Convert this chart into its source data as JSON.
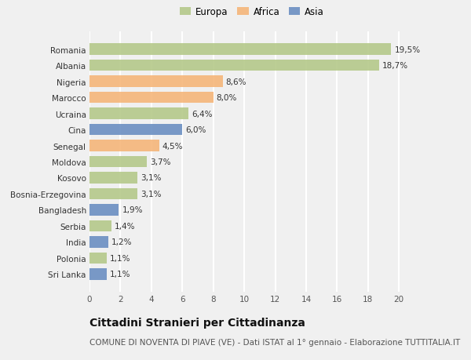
{
  "countries": [
    "Romania",
    "Albania",
    "Nigeria",
    "Marocco",
    "Ucraina",
    "Cina",
    "Senegal",
    "Moldova",
    "Kosovo",
    "Bosnia-Erzegovina",
    "Bangladesh",
    "Serbia",
    "India",
    "Polonia",
    "Sri Lanka"
  ],
  "values": [
    19.5,
    18.7,
    8.6,
    8.0,
    6.4,
    6.0,
    4.5,
    3.7,
    3.1,
    3.1,
    1.9,
    1.4,
    1.2,
    1.1,
    1.1
  ],
  "labels": [
    "19,5%",
    "18,7%",
    "8,6%",
    "8,0%",
    "6,4%",
    "6,0%",
    "4,5%",
    "3,7%",
    "3,1%",
    "3,1%",
    "1,9%",
    "1,4%",
    "1,2%",
    "1,1%",
    "1,1%"
  ],
  "continents": [
    "Europa",
    "Europa",
    "Africa",
    "Africa",
    "Europa",
    "Asia",
    "Africa",
    "Europa",
    "Europa",
    "Europa",
    "Asia",
    "Europa",
    "Asia",
    "Europa",
    "Asia"
  ],
  "colors": {
    "Europa": "#b5c98a",
    "Africa": "#f5b67a",
    "Asia": "#6b8fc2"
  },
  "xlim": [
    0,
    21
  ],
  "xticks": [
    0,
    2,
    4,
    6,
    8,
    10,
    12,
    14,
    16,
    18,
    20
  ],
  "title": "Cittadini Stranieri per Cittadinanza",
  "subtitle": "COMUNE DI NOVENTA DI PIAVE (VE) - Dati ISTAT al 1° gennaio - Elaborazione TUTTITALIA.IT",
  "bg_color": "#f0f0f0",
  "grid_color": "#ffffff",
  "bar_alpha": 0.9,
  "title_fontsize": 10,
  "subtitle_fontsize": 7.5,
  "label_fontsize": 7.5,
  "tick_fontsize": 7.5,
  "legend_fontsize": 8.5
}
